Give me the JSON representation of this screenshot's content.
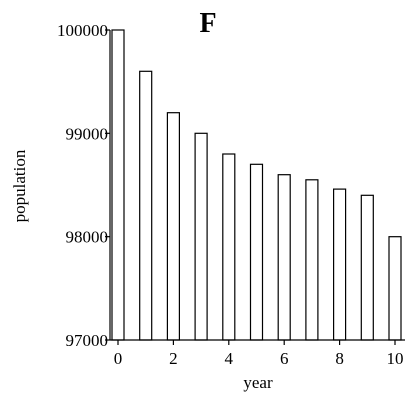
{
  "chart_data": {
    "type": "bar",
    "title": "F",
    "xlabel": "year",
    "ylabel": "population",
    "categories": [
      0,
      1,
      2,
      3,
      4,
      5,
      6,
      7,
      8,
      9,
      10
    ],
    "values": [
      100000,
      99600,
      99200,
      99000,
      98800,
      98700,
      98600,
      98550,
      98460,
      98400,
      98000
    ],
    "ylim": [
      97000,
      100000
    ],
    "yticks": [
      97000,
      98000,
      99000,
      100000
    ],
    "ytick_labels": [
      "97000",
      "98000",
      "99000",
      "100000"
    ],
    "xticks": [
      0,
      2,
      4,
      6,
      8,
      10
    ],
    "xtick_labels": [
      "0",
      "2",
      "4",
      "6",
      "8",
      "10"
    ],
    "grid": false,
    "legend": "none",
    "colors": {
      "bar_fill": "#ffffff",
      "bar_stroke": "#000000"
    }
  }
}
